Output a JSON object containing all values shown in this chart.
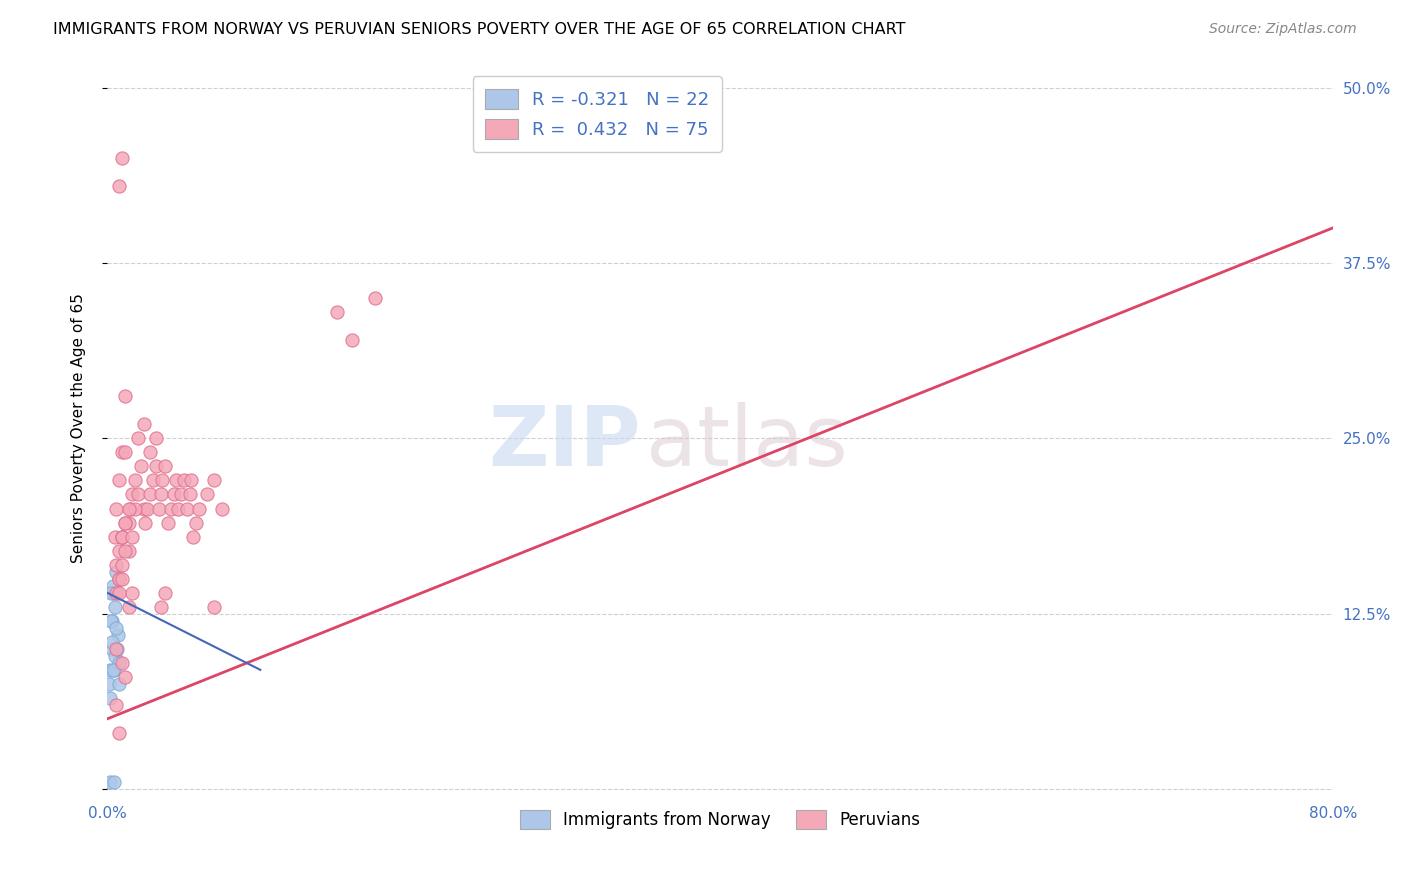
{
  "title": "IMMIGRANTS FROM NORWAY VS PERUVIAN SENIORS POVERTY OVER THE AGE OF 65 CORRELATION CHART",
  "source": "Source: ZipAtlas.com",
  "ylabel": "Seniors Poverty Over the Age of 65",
  "xlim": [
    0,
    80
  ],
  "ylim": [
    -0.5,
    52
  ],
  "ytick_positions": [
    0.0,
    12.5,
    25.0,
    37.5,
    50.0
  ],
  "yticklabels_right": [
    "",
    "12.5%",
    "25.0%",
    "37.5%",
    "50.0%"
  ],
  "grid_color": "#d0d0d0",
  "background_color": "#ffffff",
  "norway_color": "#aec6e8",
  "norway_edge": "#7aafd4",
  "peru_color": "#f4a8b8",
  "peru_edge": "#e07090",
  "norway_line_color": "#4466bb",
  "peru_line_color": "#dd4466",
  "watermark_zip_color": "#c8d8f0",
  "watermark_atlas_color": "#d8c8cc",
  "legend_norway_label": "R = -0.321   N = 22",
  "legend_peru_label": "R =  0.432   N = 75",
  "legend_label_norway": "Immigrants from Norway",
  "legend_label_peru": "Peruvians",
  "norway_x": [
    0.3,
    0.4,
    0.2,
    0.5,
    0.6,
    0.3,
    0.7,
    0.4,
    0.5,
    0.8,
    0.25,
    0.35,
    0.15,
    0.55,
    0.45,
    0.28,
    0.65,
    0.38,
    0.75,
    0.18,
    0.22,
    0.42
  ],
  "norway_y": [
    12.0,
    14.0,
    8.5,
    13.0,
    15.5,
    10.0,
    11.0,
    14.5,
    9.5,
    9.0,
    12.0,
    10.5,
    7.5,
    11.5,
    8.5,
    14.0,
    10.0,
    8.5,
    7.5,
    6.5,
    0.5,
    0.5
  ],
  "peru_x": [
    0.5,
    0.6,
    0.8,
    1.0,
    1.2,
    1.4,
    1.5,
    1.6,
    1.8,
    2.0,
    2.2,
    2.4,
    2.5,
    2.6,
    2.8,
    3.0,
    3.2,
    3.4,
    3.5,
    3.6,
    3.8,
    4.0,
    4.2,
    4.4,
    4.5,
    4.6,
    4.8,
    5.0,
    5.2,
    5.4,
    5.5,
    5.6,
    5.8,
    6.0,
    6.5,
    7.0,
    7.5,
    1.0,
    1.2,
    1.4,
    1.8,
    2.0,
    2.4,
    2.8,
    3.2,
    0.8,
    1.0,
    0.6,
    0.8,
    1.0,
    1.2,
    1.4,
    1.6,
    0.6,
    0.8,
    1.0,
    1.2,
    1.0,
    0.8,
    1.4,
    1.6,
    1.0,
    1.2,
    0.8,
    1.0,
    1.2,
    0.6,
    0.8,
    0.6,
    3.5,
    3.8,
    7.0,
    15.0,
    16.0,
    17.5
  ],
  "peru_y": [
    18.0,
    20.0,
    22.0,
    24.0,
    24.0,
    19.0,
    20.0,
    21.0,
    22.0,
    21.0,
    23.0,
    20.0,
    19.0,
    20.0,
    21.0,
    22.0,
    23.0,
    20.0,
    21.0,
    22.0,
    23.0,
    19.0,
    20.0,
    21.0,
    22.0,
    20.0,
    21.0,
    22.0,
    20.0,
    21.0,
    22.0,
    18.0,
    19.0,
    20.0,
    21.0,
    22.0,
    20.0,
    18.0,
    19.0,
    17.0,
    20.0,
    25.0,
    26.0,
    24.0,
    25.0,
    17.0,
    18.0,
    16.0,
    15.0,
    18.0,
    19.0,
    20.0,
    18.0,
    14.0,
    15.0,
    16.0,
    17.0,
    15.0,
    14.0,
    13.0,
    14.0,
    9.0,
    8.0,
    43.0,
    45.0,
    28.0,
    10.0,
    4.0,
    6.0,
    13.0,
    14.0,
    13.0,
    34.0,
    32.0,
    35.0
  ],
  "peru_line_x0": 0,
  "peru_line_y0": 5.0,
  "peru_line_x1": 80,
  "peru_line_y1": 40.0,
  "norway_line_x0": 0,
  "norway_line_y0": 14.0,
  "norway_line_x1": 10,
  "norway_line_y1": 8.5
}
